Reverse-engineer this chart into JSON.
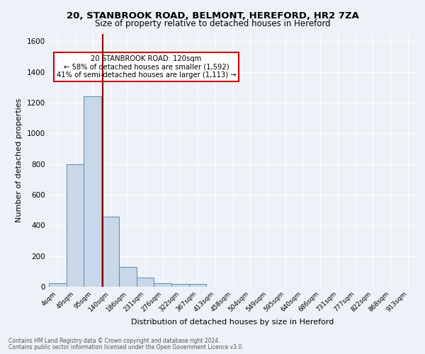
{
  "title1": "20, STANBROOK ROAD, BELMONT, HEREFORD, HR2 7ZA",
  "title2": "Size of property relative to detached houses in Hereford",
  "xlabel": "Distribution of detached houses by size in Hereford",
  "ylabel": "Number of detached properties",
  "bar_values": [
    25,
    800,
    1240,
    455,
    130,
    60,
    25,
    18,
    18,
    0,
    0,
    0,
    0,
    0,
    0,
    0,
    0,
    0,
    0,
    0,
    0
  ],
  "categories": [
    "4sqm",
    "49sqm",
    "95sqm",
    "140sqm",
    "186sqm",
    "231sqm",
    "276sqm",
    "322sqm",
    "367sqm",
    "413sqm",
    "458sqm",
    "504sqm",
    "549sqm",
    "595sqm",
    "640sqm",
    "686sqm",
    "731sqm",
    "777sqm",
    "822sqm",
    "868sqm",
    "913sqm"
  ],
  "bar_color": "#c8d8e8",
  "bar_edge_color": "#5a8ab0",
  "vline_color": "#8b0000",
  "annotation_text": "20 STANBROOK ROAD: 120sqm\n← 58% of detached houses are smaller (1,592)\n41% of semi-detached houses are larger (1,113) →",
  "annotation_box_color": "#ffffff",
  "annotation_box_edge": "#cc0000",
  "ylim": [
    0,
    1650
  ],
  "yticks": [
    0,
    200,
    400,
    600,
    800,
    1000,
    1200,
    1400,
    1600
  ],
  "footer1": "Contains HM Land Registry data © Crown copyright and database right 2024.",
  "footer2": "Contains public sector information licensed under the Open Government Licence v3.0.",
  "bg_color": "#eef2f8",
  "plot_bg_color": "#eef2f8"
}
